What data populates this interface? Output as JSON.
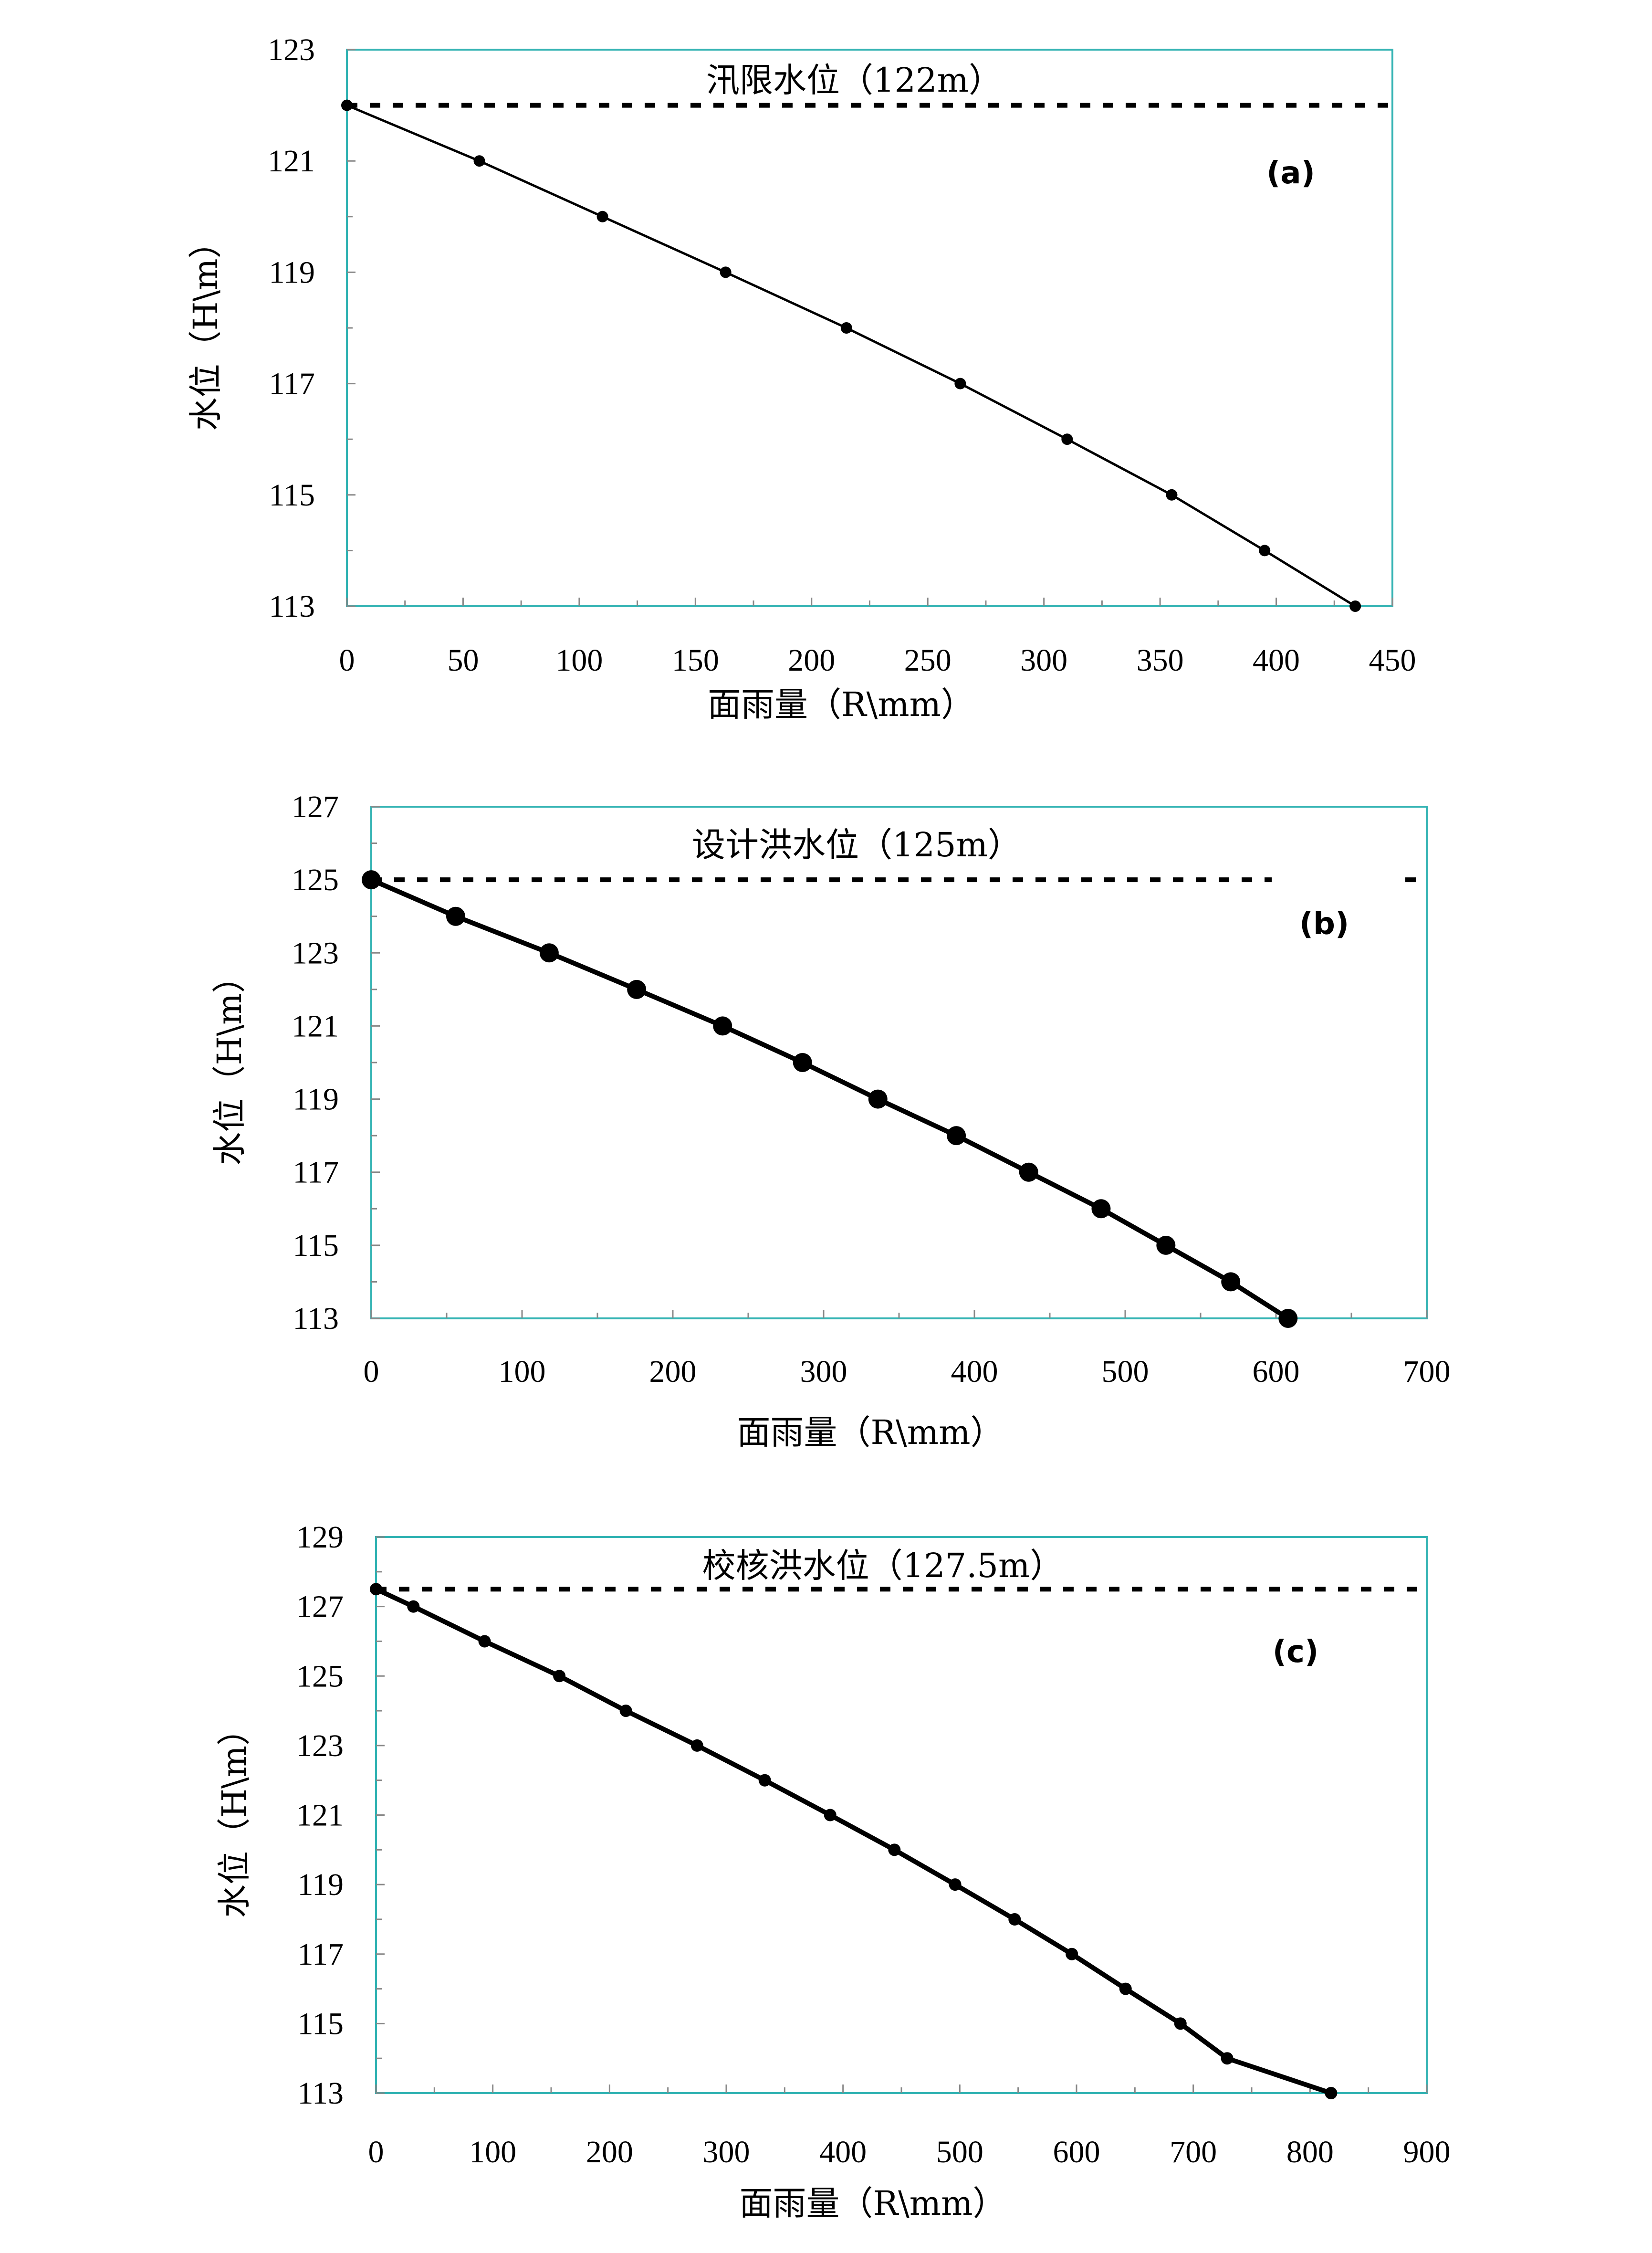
{
  "chart_data": [
    {
      "type": "line",
      "panel_label": "(a)",
      "xlabel": "面雨量（R\\mm）",
      "ylabel": "水位（H\\m）",
      "xlim": [
        0,
        450
      ],
      "ylim": [
        113,
        123
      ],
      "xticks": [
        0,
        50,
        100,
        150,
        200,
        250,
        300,
        350,
        400,
        450
      ],
      "yticks": [
        113,
        115,
        117,
        119,
        121,
        123
      ],
      "grid": false,
      "reference_line": {
        "label": "汛限水位（122m）",
        "y": 122
      },
      "series": [
        {
          "x": [
            0,
            57,
            110,
            163,
            215,
            264,
            310,
            355,
            395,
            434
          ],
          "y": [
            122,
            121,
            120,
            119,
            118,
            117,
            116,
            115,
            114,
            113
          ]
        }
      ]
    },
    {
      "type": "line",
      "panel_label": "(b)",
      "xlabel": "面雨量（R\\mm）",
      "ylabel": "水位（H\\m）",
      "xlim": [
        0,
        700
      ],
      "ylim": [
        113,
        127
      ],
      "xticks": [
        0,
        100,
        200,
        300,
        400,
        500,
        600,
        700
      ],
      "yticks": [
        113,
        115,
        117,
        119,
        121,
        123,
        125,
        127
      ],
      "grid": false,
      "reference_line": {
        "label": "设计洪水位（125m）",
        "y": 125
      },
      "series": [
        {
          "x": [
            0,
            56,
            118,
            176,
            233,
            286,
            336,
            388,
            436,
            484,
            527,
            570,
            608
          ],
          "y": [
            125,
            124,
            123,
            122,
            121,
            120,
            119,
            118,
            117,
            116,
            115,
            114,
            113
          ]
        }
      ]
    },
    {
      "type": "line",
      "panel_label": "(c)",
      "xlabel": "面雨量（R\\mm）",
      "ylabel": "水位（H\\m）",
      "xlim": [
        0,
        900
      ],
      "ylim": [
        113,
        129
      ],
      "xticks": [
        0,
        100,
        200,
        300,
        400,
        500,
        600,
        700,
        800,
        900
      ],
      "yticks": [
        113,
        115,
        117,
        119,
        121,
        123,
        125,
        127,
        129
      ],
      "grid": false,
      "reference_line": {
        "label": "校核洪水位（127.5m）",
        "y": 127.5
      },
      "series": [
        {
          "x": [
            0,
            32,
            93,
            157,
            214,
            275,
            333,
            389,
            444,
            496,
            547,
            596,
            642,
            689,
            729,
            818
          ],
          "y": [
            127.5,
            127,
            126,
            125,
            124,
            123,
            122,
            121,
            120,
            119,
            118,
            117,
            116,
            115,
            114,
            113
          ]
        }
      ]
    }
  ]
}
